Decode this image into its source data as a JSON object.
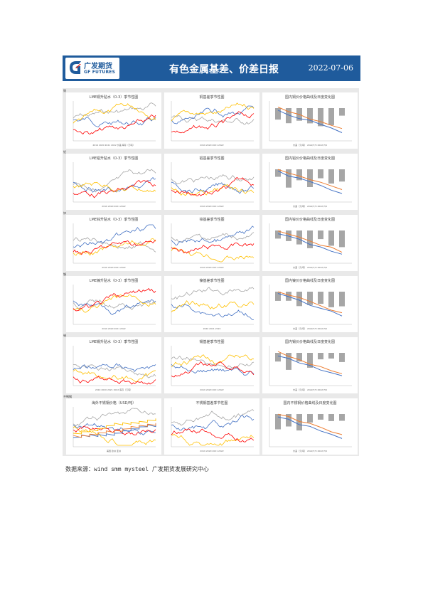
{
  "header": {
    "logo_cn": "广发期货",
    "logo_en": "GF FUTURES",
    "title": "有色金属基差、价差日报",
    "date": "2022-07-06"
  },
  "rows": [
    {
      "label": "铜",
      "panels": [
        {
          "title": "LME铜升贴水（0-3）季节性图",
          "legend": "2019  2020  2021  2022  价差  库存（万吨）"
        },
        {
          "title": "铜基差季节性图",
          "legend": "2019  2020  2021  2022"
        },
        {
          "title": "国内铜价价格曲线及日度变化图",
          "legend": "价差（元/吨）  2022/7/5  2022/7/6"
        }
      ]
    },
    {
      "label": "铝",
      "panels": [
        {
          "title": "LME铝升贴水（0-3）季节性图",
          "legend": "2019  2020  2021  2022"
        },
        {
          "title": "铝基差季节性图",
          "legend": "2019  2020  2021  2022"
        },
        {
          "title": "国内铝价价格曲线及日度变化图",
          "legend": "价差（元/吨）  2022/7/5  2022/7/6"
        }
      ]
    },
    {
      "label": "锌",
      "panels": [
        {
          "title": "LME锌升贴水（0-3）季节性图",
          "legend": "2019  2020  2021  2022"
        },
        {
          "title": "锌基差季节性图",
          "legend": "2019  2020  2021  2022"
        },
        {
          "title": "国内锌价价格曲线及日度变化图",
          "legend": "价差（元/吨）  2022/7/5  2022/7/6"
        }
      ]
    },
    {
      "label": "镍",
      "panels": [
        {
          "title": "LME镍升贴水（0-3）季节性图",
          "legend": "2019  2020  2021  2022"
        },
        {
          "title": "镍基差季节性图",
          "legend": "2020  2021  2022"
        },
        {
          "title": "国内镍价价格曲线及日度变化图",
          "legend": "价差（元/吨）  2022/7/5  2022/7/6"
        }
      ]
    },
    {
      "label": "锡",
      "panels": [
        {
          "title": "LME锡升贴水（0-3）季节性图",
          "legend": "2019  2020  2021  2022  库存（万吨）"
        },
        {
          "title": "锡基差季节性图",
          "legend": "2019  2020  2021  2022"
        },
        {
          "title": "国内锡价价格曲线及日度变化图",
          "legend": "价差（元/吨）  2022/7/5  2022/7/6"
        }
      ]
    },
    {
      "label": "不锈钢",
      "panels": [
        {
          "title": "海外不锈钢价格（USD/吨）",
          "legend": "美国  欧洲  亚洲"
        },
        {
          "title": "不锈钢基差季节性图",
          "legend": "2019  2020  2021  2022"
        },
        {
          "title": "国内不锈钢价格曲线及日度变化图",
          "legend": "价差（元/吨）  2022/7/5  2022/7/6"
        }
      ]
    }
  ],
  "source": "数据来源：wind  smm  mysteel  广发期货发展研究中心",
  "colors": {
    "header_bg": "#1f5b9c",
    "series": [
      "#a6a6a6",
      "#4472c4",
      "#ffc000",
      "#ff0000",
      "#7030a0",
      "#ed7d31"
    ]
  }
}
